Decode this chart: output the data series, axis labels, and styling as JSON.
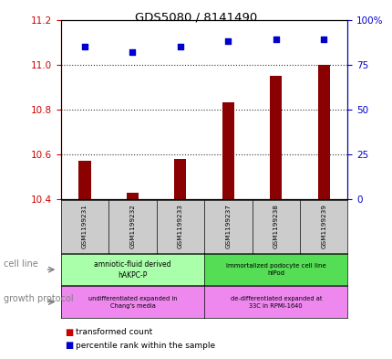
{
  "title": "GDS5080 / 8141490",
  "samples": [
    "GSM1199231",
    "GSM1199232",
    "GSM1199233",
    "GSM1199237",
    "GSM1199238",
    "GSM1199239"
  ],
  "transformed_counts": [
    10.57,
    10.43,
    10.58,
    10.83,
    10.95,
    11.0
  ],
  "percentile_ranks": [
    85,
    82,
    85,
    88,
    89,
    89
  ],
  "ylim_left": [
    10.4,
    11.2
  ],
  "ylim_right": [
    0,
    100
  ],
  "yticks_left": [
    10.4,
    10.6,
    10.8,
    11.0,
    11.2
  ],
  "yticks_right": [
    0,
    25,
    50,
    75,
    100
  ],
  "ytick_labels_right": [
    "0",
    "25",
    "50",
    "75",
    "100%"
  ],
  "left_color": "#cc0000",
  "right_color": "#0000cc",
  "bar_color": "#8b0000",
  "dot_color": "#0000cc",
  "cell_line_labels": [
    "amniotic-fluid derived\nhAKPC-P",
    "immortalized podocyte cell line\nhIPod"
  ],
  "cell_line_colors": [
    "#aaffaa",
    "#55dd55"
  ],
  "growth_protocol_labels": [
    "undifferentiated expanded in\nChang's media",
    "de-differentiated expanded at\n33C in RPMI-1640"
  ],
  "growth_protocol_colors": [
    "#ee88ee",
    "#ee88ee"
  ],
  "group1_samples": [
    0,
    1,
    2
  ],
  "group2_samples": [
    3,
    4,
    5
  ],
  "legend_items": [
    "transformed count",
    "percentile rank within the sample"
  ],
  "legend_colors": [
    "#cc0000",
    "#0000cc"
  ],
  "bar_width": 0.25
}
